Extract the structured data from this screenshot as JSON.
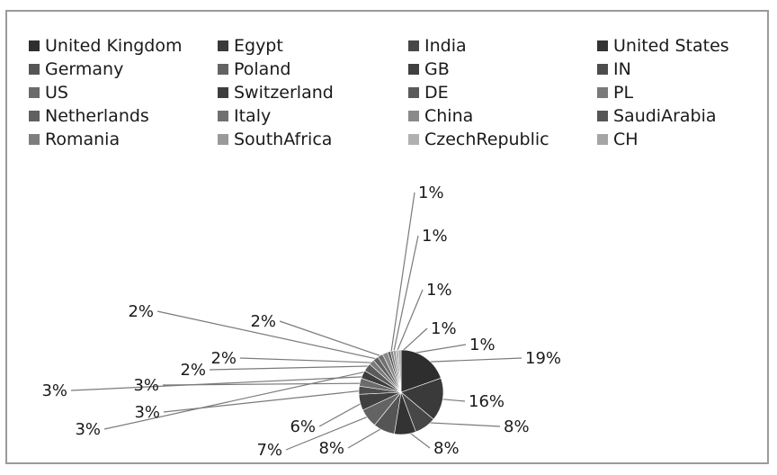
{
  "chart_data": {
    "type": "pie",
    "title": "",
    "legend_position": "top",
    "categories": [
      "United Kingdom",
      "Egypt",
      "India",
      "United States",
      "Germany",
      "Poland",
      "GB",
      "IN",
      "US",
      "Switzerland",
      "DE",
      "PL",
      "Netherlands",
      "Italy",
      "China",
      "SaudiArabia",
      "Romania",
      "SouthAfrica",
      "CzechRepublic",
      "CH"
    ],
    "values": [
      19,
      16,
      8,
      8,
      8,
      7,
      6,
      3,
      3,
      3,
      3,
      2,
      2,
      2,
      2,
      1,
      1,
      1,
      1,
      1
    ],
    "data_labels": [
      "19%",
      "16%",
      "8%",
      "8%",
      "8%",
      "7%",
      "6%",
      "3%",
      "3%",
      "3%",
      "3%",
      "2%",
      "2%",
      "2%",
      "2%",
      "1%",
      "1%",
      "1%",
      "1%",
      "1%"
    ],
    "colors": [
      "#2e2e2e",
      "#3a3a3a",
      "#474747",
      "#333333",
      "#555555",
      "#636363",
      "#404040",
      "#4d4d4d",
      "#6b6b6b",
      "#3d3d3d",
      "#5a5a5a",
      "#7a7a7a",
      "#606060",
      "#707070",
      "#8a8a8a",
      "#565656",
      "#7e7e7e",
      "#9a9a9a",
      "#b0b0b0",
      "#a5a5a5"
    ]
  }
}
